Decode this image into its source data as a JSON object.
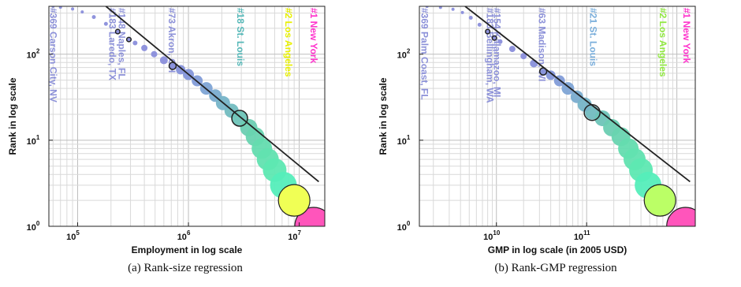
{
  "chart_data": [
    {
      "type": "scatter",
      "caption": "(a) Rank-size regression",
      "xlabel": "Employment in log scale",
      "ylabel": "Rank in log scale",
      "x_scale": "log",
      "y_scale": "log",
      "xlim": [
        55000,
        17000000
      ],
      "ylim": [
        1,
        360
      ],
      "grid": true,
      "x_ticks": [
        {
          "value": 100000,
          "base": "10",
          "exp": "5"
        },
        {
          "value": 1000000,
          "base": "10",
          "exp": "6"
        },
        {
          "value": 10000000,
          "base": "10",
          "exp": "7"
        }
      ],
      "y_ticks": [
        {
          "value": 1,
          "base": "10",
          "exp": "0"
        },
        {
          "value": 10,
          "base": "10",
          "exp": "1"
        },
        {
          "value": 100,
          "base": "10",
          "exp": "2"
        }
      ],
      "fit_line": {
        "x": [
          180000,
          15000000
        ],
        "y": [
          360,
          3.3
        ]
      },
      "highlighted_points": [
        {
          "x": 230000,
          "y": 183
        },
        {
          "x": 290000,
          "y": 148
        },
        {
          "x": 720000,
          "y": 73
        },
        {
          "x": 2900000,
          "y": 18
        }
      ],
      "annotations": [
        {
          "text": "#1 New York",
          "x": 13500000,
          "color": "#ff33cc"
        },
        {
          "text": "#2 Los Angeles",
          "x": 8000000,
          "color": "#e8f000"
        },
        {
          "text": "#18 St. Louis",
          "x": 2950000,
          "color": "#55b8b8"
        },
        {
          "text": "#73 Akron, OH",
          "x": 710000,
          "color": "#8b90d8"
        },
        {
          "text": "#148 Naples, FL",
          "x": 250000,
          "color": "#8b90d8"
        },
        {
          "text": "#183 Laredo, TX",
          "x": 205000,
          "color": "#8b90d8"
        },
        {
          "text": "#369 Carson City, NV",
          "x": 60000,
          "color": "#8b90d8"
        }
      ],
      "points": [
        {
          "x": 13500000,
          "y": 1,
          "r": 24,
          "color": "#ff55bb"
        },
        {
          "x": 9000000,
          "y": 2,
          "r": 20,
          "color": "#f0ff55"
        },
        {
          "x": 7200000,
          "y": 3,
          "r": 17,
          "color": "#55eebb"
        },
        {
          "x": 6000000,
          "y": 4.5,
          "r": 15,
          "color": "#5ee8b2"
        },
        {
          "x": 5200000,
          "y": 6,
          "r": 14,
          "color": "#62e2b0"
        },
        {
          "x": 4600000,
          "y": 8,
          "r": 13,
          "color": "#64dcaf"
        },
        {
          "x": 4000000,
          "y": 11,
          "r": 12,
          "color": "#68d4b0"
        },
        {
          "x": 3500000,
          "y": 14,
          "r": 11,
          "color": "#6ccdb2"
        },
        {
          "x": 2900000,
          "y": 18,
          "r": 10,
          "color": "#6ec4b8"
        },
        {
          "x": 2450000,
          "y": 22,
          "r": 9,
          "color": "#72bcc0"
        },
        {
          "x": 2050000,
          "y": 27,
          "r": 9,
          "color": "#76b4c8"
        },
        {
          "x": 1750000,
          "y": 33,
          "r": 8,
          "color": "#7aaccf"
        },
        {
          "x": 1450000,
          "y": 40,
          "r": 8,
          "color": "#7ea4d5"
        },
        {
          "x": 1200000,
          "y": 49,
          "r": 7,
          "color": "#829cd8"
        },
        {
          "x": 1000000,
          "y": 58,
          "r": 7,
          "color": "#8496da"
        },
        {
          "x": 850000,
          "y": 66,
          "r": 6,
          "color": "#8692da"
        },
        {
          "x": 720000,
          "y": 73,
          "r": 5,
          "color": "#8890db"
        },
        {
          "x": 600000,
          "y": 85,
          "r": 5,
          "color": "#8a8edb"
        },
        {
          "x": 490000,
          "y": 100,
          "r": 4,
          "color": "#8a8edb"
        },
        {
          "x": 400000,
          "y": 118,
          "r": 4,
          "color": "#8a8edb"
        },
        {
          "x": 330000,
          "y": 135,
          "r": 3,
          "color": "#8a8edb"
        },
        {
          "x": 290000,
          "y": 148,
          "r": 3,
          "color": "#8a8edb"
        },
        {
          "x": 230000,
          "y": 183,
          "r": 3,
          "color": "#8a8edb"
        },
        {
          "x": 180000,
          "y": 225,
          "r": 2.5,
          "color": "#8a8edb"
        },
        {
          "x": 140000,
          "y": 270,
          "r": 2.5,
          "color": "#8a8edb"
        },
        {
          "x": 110000,
          "y": 310,
          "r": 2,
          "color": "#8a8edb"
        },
        {
          "x": 90000,
          "y": 335,
          "r": 2,
          "color": "#8a8edb"
        },
        {
          "x": 70000,
          "y": 352,
          "r": 2,
          "color": "#8a8edb"
        },
        {
          "x": 60000,
          "y": 360,
          "r": 2,
          "color": "#8a8edb"
        }
      ]
    },
    {
      "type": "scatter",
      "caption": "(b) Rank-GMP regression",
      "xlabel": "GMP in log scale (in 2005 USD)",
      "ylabel": "Rank in log scale",
      "x_scale": "log",
      "y_scale": "log",
      "xlim": [
        1400000000,
        1600000000000
      ],
      "ylim": [
        1,
        360
      ],
      "grid": true,
      "x_ticks": [
        {
          "value": 10000000000,
          "base": "10",
          "exp": "10"
        },
        {
          "value": 100000000000,
          "base": "10",
          "exp": "11"
        }
      ],
      "y_ticks": [
        {
          "value": 1,
          "base": "10",
          "exp": "0"
        },
        {
          "value": 10,
          "base": "10",
          "exp": "1"
        },
        {
          "value": 100,
          "base": "10",
          "exp": "2"
        }
      ],
      "fit_line": {
        "x": [
          4500000000,
          1400000000000
        ],
        "y": [
          360,
          3.3
        ]
      },
      "highlighted_points": [
        {
          "x": 8000000000,
          "y": 183
        },
        {
          "x": 9500000000,
          "y": 154
        },
        {
          "x": 33000000000,
          "y": 63
        },
        {
          "x": 115000000000,
          "y": 21
        }
      ],
      "annotations": [
        {
          "text": "#1 New York",
          "x": 1280000000000,
          "color": "#ff33cc"
        },
        {
          "text": "#2 Los Angeles",
          "x": 700000000000,
          "color": "#90e840"
        },
        {
          "text": "#21 St. Louis",
          "x": 118000000000,
          "color": "#7aaedb"
        },
        {
          "text": "#63 Madison, WI",
          "x": 32000000000,
          "color": "#8b90d8"
        },
        {
          "text": "#154 Kalamazoo, MI",
          "x": 10200000000,
          "color": "#8b90d8"
        },
        {
          "text": "#183 Bellingham, WA",
          "x": 8500000000,
          "color": "#8b90d8"
        },
        {
          "text": "#369 Palm Coast, FL",
          "x": 1600000000,
          "color": "#8b90d8"
        }
      ],
      "points": [
        {
          "x": 1250000000000,
          "y": 1,
          "r": 24,
          "color": "#ff55bb"
        },
        {
          "x": 650000000000,
          "y": 2,
          "r": 20,
          "color": "#bbff66"
        },
        {
          "x": 480000000000,
          "y": 3,
          "r": 17,
          "color": "#55eebb"
        },
        {
          "x": 400000000000,
          "y": 4.5,
          "r": 15,
          "color": "#5ee8b2"
        },
        {
          "x": 340000000000,
          "y": 6,
          "r": 14,
          "color": "#62e2b0"
        },
        {
          "x": 290000000000,
          "y": 8,
          "r": 13,
          "color": "#64dcaf"
        },
        {
          "x": 240000000000,
          "y": 11,
          "r": 12,
          "color": "#68d4b0"
        },
        {
          "x": 190000000000,
          "y": 14,
          "r": 11,
          "color": "#6ccdb2"
        },
        {
          "x": 150000000000,
          "y": 18,
          "r": 10,
          "color": "#6ec4b8"
        },
        {
          "x": 115000000000,
          "y": 21,
          "r": 9,
          "color": "#72bcc0"
        },
        {
          "x": 95000000000,
          "y": 26,
          "r": 9,
          "color": "#76b4c8"
        },
        {
          "x": 78000000000,
          "y": 32,
          "r": 8,
          "color": "#7aaccf"
        },
        {
          "x": 62000000000,
          "y": 40,
          "r": 8,
          "color": "#7ea4d5"
        },
        {
          "x": 50000000000,
          "y": 49,
          "r": 7,
          "color": "#829cd8"
        },
        {
          "x": 40000000000,
          "y": 57,
          "r": 6,
          "color": "#8496da"
        },
        {
          "x": 33000000000,
          "y": 63,
          "r": 5,
          "color": "#8692da"
        },
        {
          "x": 26000000000,
          "y": 78,
          "r": 5,
          "color": "#8890db"
        },
        {
          "x": 20000000000,
          "y": 95,
          "r": 4,
          "color": "#8a8edb"
        },
        {
          "x": 15000000000,
          "y": 115,
          "r": 4,
          "color": "#8a8edb"
        },
        {
          "x": 11000000000,
          "y": 140,
          "r": 3,
          "color": "#8a8edb"
        },
        {
          "x": 9500000000,
          "y": 154,
          "r": 3,
          "color": "#8a8edb"
        },
        {
          "x": 8000000000,
          "y": 183,
          "r": 3,
          "color": "#8a8edb"
        },
        {
          "x": 6500000000,
          "y": 220,
          "r": 2.5,
          "color": "#8a8edb"
        },
        {
          "x": 5200000000,
          "y": 265,
          "r": 2.5,
          "color": "#8a8edb"
        },
        {
          "x": 4200000000,
          "y": 305,
          "r": 2,
          "color": "#8a8edb"
        },
        {
          "x": 3300000000,
          "y": 333,
          "r": 2,
          "color": "#8a8edb"
        },
        {
          "x": 2400000000,
          "y": 350,
          "r": 2,
          "color": "#8a8edb"
        },
        {
          "x": 1700000000,
          "y": 360,
          "r": 2,
          "color": "#8a8edb"
        }
      ]
    }
  ]
}
